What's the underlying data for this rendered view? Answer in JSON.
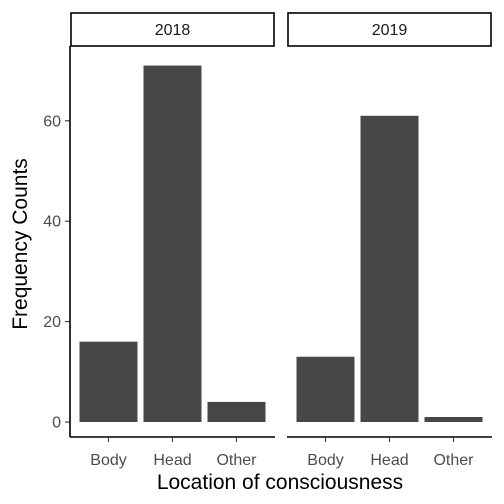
{
  "chart_data": {
    "type": "bar",
    "facet_by": "year",
    "panels": [
      {
        "label": "2018",
        "categories": [
          "Body",
          "Head",
          "Other"
        ],
        "values": [
          16,
          71,
          4
        ]
      },
      {
        "label": "2019",
        "categories": [
          "Body",
          "Head",
          "Other"
        ],
        "values": [
          13,
          61,
          1
        ]
      }
    ],
    "xlabel": "Location of consciousness",
    "ylabel": "Frequency Counts",
    "ylim": [
      0,
      75
    ],
    "yticks": [
      0,
      20,
      40,
      60
    ],
    "bar_color": "#474747",
    "grid": false,
    "legend": "none"
  }
}
